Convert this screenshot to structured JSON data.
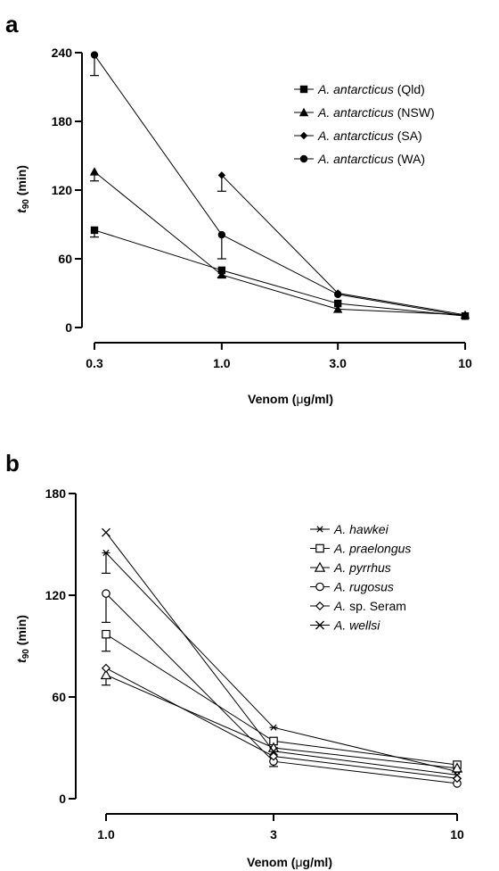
{
  "chart_data": [
    {
      "panel_label": "a",
      "type": "line",
      "xlabel_prefix": "Venom (",
      "xlabel_mu": "μ",
      "xlabel_suffix": "g/ml)",
      "ylabel_main": "t",
      "ylabel_sub": "90",
      "ylabel_unit": " (min)",
      "x_scale": "log",
      "x_ticks": [
        "0.3",
        "1.0",
        "3.0",
        "10"
      ],
      "y_ticks": [
        "0",
        "60",
        "120",
        "180",
        "240"
      ],
      "ylim": [
        0,
        240
      ],
      "xlim": [
        0.3,
        10
      ],
      "legend": "top-right",
      "series": [
        {
          "name_genus": "A. antarcticus",
          "name_tag": " (Qld)",
          "marker": "square-filled",
          "x": [
            0.3,
            1.0,
            3.0,
            10
          ],
          "y": [
            85,
            50,
            21,
            10
          ],
          "err": [
            6,
            0,
            0,
            0
          ]
        },
        {
          "name_genus": "A. antarcticus",
          "name_tag": " (NSW)",
          "marker": "triangle-filled",
          "x": [
            0.3,
            1.0,
            3.0,
            10
          ],
          "y": [
            136,
            46,
            16,
            11
          ],
          "err": [
            8,
            2,
            0,
            0
          ]
        },
        {
          "name_genus": "A. antarcticus",
          "name_tag": " (SA)",
          "marker": "diamond-filled",
          "x": [
            1.0,
            3.0,
            10
          ],
          "y": [
            133,
            30,
            11
          ],
          "err": [
            14,
            0,
            0
          ]
        },
        {
          "name_genus": "A. antarcticus",
          "name_tag": " (WA)",
          "marker": "circle-filled",
          "x": [
            0.3,
            1.0,
            3.0,
            10
          ],
          "y": [
            238,
            81,
            29,
            10
          ],
          "err": [
            18,
            21,
            0,
            0
          ]
        }
      ]
    },
    {
      "panel_label": "b",
      "type": "line",
      "xlabel_prefix": "Venom (",
      "xlabel_mu": "μ",
      "xlabel_suffix": "g/ml)",
      "ylabel_main": "t",
      "ylabel_sub": "90",
      "ylabel_unit": " (min)",
      "x_scale": "log",
      "x_ticks": [
        "1.0",
        "3",
        "10"
      ],
      "y_ticks": [
        "0",
        "60",
        "120",
        "180"
      ],
      "ylim": [
        0,
        180
      ],
      "xlim": [
        1,
        10
      ],
      "legend": "top-right",
      "series": [
        {
          "name_genus": "A. hawkei",
          "name_tag": "",
          "marker": "asterisk",
          "x": [
            1.0,
            3,
            10
          ],
          "y": [
            145,
            42,
            16
          ],
          "err": [
            12,
            0,
            0
          ]
        },
        {
          "name_genus": "A. praelongus",
          "name_tag": "",
          "marker": "square-open",
          "x": [
            1.0,
            3,
            10
          ],
          "y": [
            97,
            34,
            20
          ],
          "err": [
            10,
            0,
            0
          ]
        },
        {
          "name_genus": "A. pyrrhus",
          "name_tag": "",
          "marker": "triangle-open",
          "x": [
            1.0,
            3,
            10
          ],
          "y": [
            73,
            30,
            18
          ],
          "err": [
            6,
            0,
            0
          ]
        },
        {
          "name_genus": "A. rugosus",
          "name_tag": "",
          "marker": "circle-open",
          "x": [
            1.0,
            3,
            10
          ],
          "y": [
            121,
            22,
            9
          ],
          "err": [
            17,
            3,
            0
          ]
        },
        {
          "name_genus": "A.",
          "name_tag": " sp. Seram",
          "marker": "diamond-open",
          "x": [
            1.0,
            3,
            10
          ],
          "y": [
            77,
            25,
            12
          ],
          "err": [
            0,
            0,
            0
          ]
        },
        {
          "name_genus": "A. wellsi",
          "name_tag": "",
          "marker": "x",
          "x": [
            1.0,
            3,
            10
          ],
          "y": [
            157,
            28,
            14
          ],
          "err": [
            0,
            0,
            0
          ]
        }
      ]
    }
  ]
}
